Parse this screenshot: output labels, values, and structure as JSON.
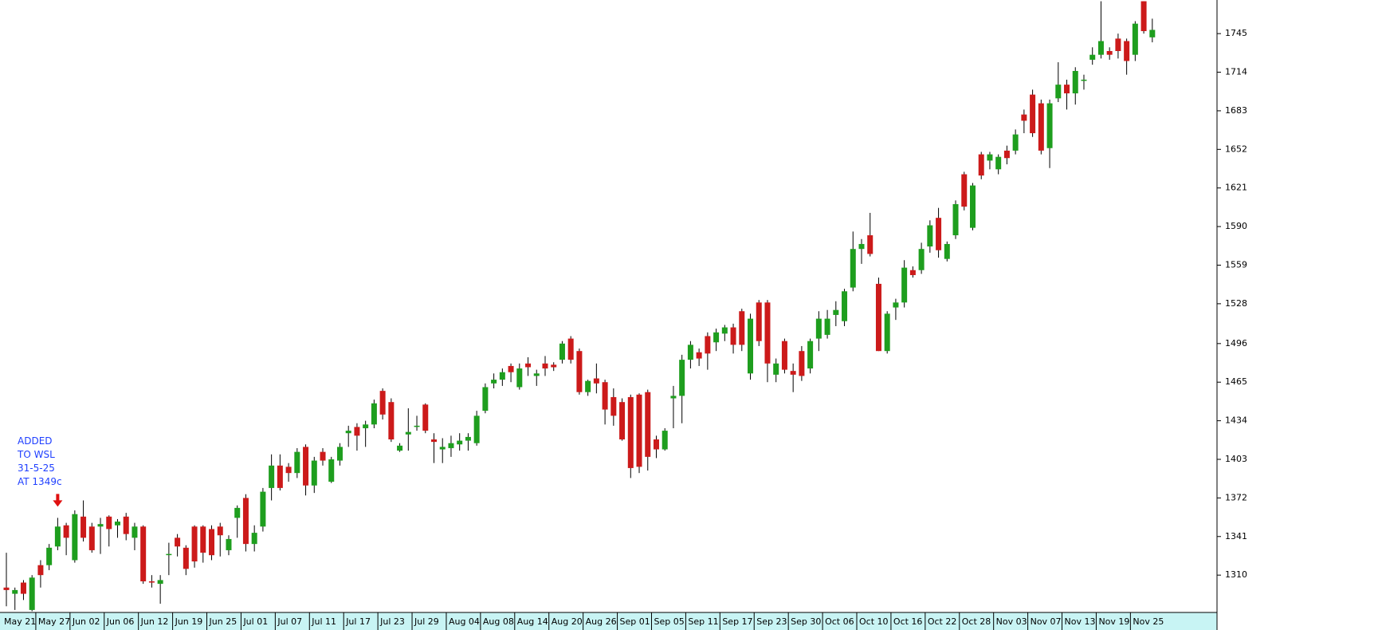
{
  "chart_data": {
    "type": "candlestick",
    "categories": [
      "May 21",
      null,
      null,
      null,
      "May 27",
      null,
      null,
      null,
      "Jun 02",
      null,
      null,
      null,
      "Jun 06",
      null,
      null,
      null,
      "Jun 12",
      null,
      null,
      null,
      "Jun 19",
      null,
      null,
      null,
      "Jun 25",
      null,
      null,
      null,
      "Jul 01",
      null,
      null,
      null,
      "Jul 07",
      null,
      null,
      null,
      "Jul 11",
      null,
      null,
      null,
      "Jul 17",
      null,
      null,
      null,
      "Jul 23",
      null,
      null,
      null,
      "Jul 29",
      null,
      null,
      null,
      "Aug 04",
      null,
      null,
      null,
      "Aug 08",
      null,
      null,
      null,
      "Aug 14",
      null,
      null,
      null,
      "Aug 20",
      null,
      null,
      null,
      "Aug 26",
      null,
      null,
      null,
      "Sep 01",
      null,
      null,
      null,
      "Sep 05",
      null,
      null,
      null,
      "Sep 11",
      null,
      null,
      null,
      "Sep 17",
      null,
      null,
      null,
      "Sep 23",
      null,
      null,
      null,
      "Sep 30",
      null,
      null,
      null,
      "Oct 06",
      null,
      null,
      null,
      "Oct 10",
      null,
      null,
      null,
      "Oct 16",
      null,
      null,
      null,
      "Oct 22",
      null,
      null,
      null,
      "Oct 28",
      null,
      null,
      null,
      "Nov 03",
      null,
      null,
      null,
      "Nov 07",
      null,
      null,
      null,
      "Nov 13",
      null,
      null,
      null,
      "Nov 19",
      null,
      null,
      null,
      "Nov 25",
      null,
      null
    ],
    "open": [
      1300,
      1295,
      1304,
      1282,
      1318,
      1318,
      1333,
      1350,
      1322,
      1357,
      1349,
      1349,
      1357,
      1350,
      1357,
      1340,
      1349,
      1305,
      1303,
      1327,
      1340,
      1332,
      1349,
      1349,
      1347,
      1349,
      1330,
      1356,
      1372,
      1335,
      1349,
      1380,
      1398,
      1397,
      1392,
      1413,
      1382,
      1409,
      1385,
      1402,
      1424,
      1429,
      1428,
      1431,
      1458,
      1449,
      1410,
      1423,
      1430,
      1447,
      1419,
      1411,
      1412,
      1415,
      1418,
      1416,
      1442,
      1464,
      1467,
      1478,
      1461,
      1480,
      1470,
      1480,
      1479,
      1483,
      1500,
      1490,
      1457,
      1468,
      1465,
      1453,
      1449,
      1453,
      1455,
      1457,
      1419,
      1411,
      1452,
      1454,
      1483,
      1489,
      1502,
      1497,
      1504,
      1509,
      1522,
      1472,
      1529,
      1529,
      1471,
      1498,
      1474,
      1490,
      1476,
      1500,
      1503,
      1519,
      1514,
      1541,
      1572,
      1583,
      1544,
      1490,
      1525,
      1529,
      1555,
      1555,
      1574,
      1597,
      1564,
      1583,
      1632,
      1589,
      1648,
      1643,
      1636,
      1651,
      1651,
      1680,
      1696,
      1689,
      1653,
      1693,
      1704,
      1697,
      1708,
      1724,
      1728,
      1731,
      1741,
      1739,
      1728,
      1771,
      1742
    ],
    "high": [
      1328,
      1300,
      1306,
      1310,
      1322,
      1335,
      1356,
      1352,
      1362,
      1370,
      1352,
      1356,
      1358,
      1355,
      1360,
      1352,
      1350,
      1310,
      1310,
      1336,
      1343,
      1334,
      1350,
      1350,
      1350,
      1352,
      1342,
      1366,
      1375,
      1350,
      1380,
      1407,
      1407,
      1400,
      1412,
      1415,
      1405,
      1412,
      1405,
      1416,
      1430,
      1432,
      1434,
      1451,
      1460,
      1452,
      1416,
      1444,
      1438,
      1448,
      1424,
      1420,
      1422,
      1424,
      1424,
      1442,
      1464,
      1472,
      1476,
      1480,
      1480,
      1485,
      1475,
      1486,
      1481,
      1498,
      1502,
      1492,
      1467,
      1480,
      1467,
      1460,
      1452,
      1455,
      1456,
      1459,
      1422,
      1428,
      1462,
      1487,
      1498,
      1492,
      1505,
      1508,
      1511,
      1512,
      1524,
      1520,
      1531,
      1531,
      1484,
      1500,
      1480,
      1494,
      1500,
      1522,
      1523,
      1530,
      1540,
      1586,
      1580,
      1601,
      1549,
      1522,
      1532,
      1563,
      1558,
      1577,
      1595,
      1605,
      1578,
      1611,
      1634,
      1625,
      1650,
      1650,
      1648,
      1655,
      1668,
      1684,
      1700,
      1692,
      1692,
      1722,
      1708,
      1718,
      1712,
      1734,
      1771,
      1734,
      1745,
      1741,
      1755,
      1771,
      1757
    ],
    "low": [
      1285,
      1282,
      1290,
      1281,
      1300,
      1314,
      1330,
      1326,
      1320,
      1337,
      1328,
      1327,
      1333,
      1340,
      1338,
      1330,
      1303,
      1300,
      1287,
      1310,
      1325,
      1310,
      1316,
      1320,
      1322,
      1325,
      1326,
      1340,
      1329,
      1329,
      1345,
      1370,
      1378,
      1385,
      1388,
      1374,
      1376,
      1398,
      1384,
      1398,
      1413,
      1410,
      1413,
      1428,
      1435,
      1417,
      1409,
      1410,
      1426,
      1424,
      1400,
      1400,
      1405,
      1410,
      1410,
      1414,
      1440,
      1460,
      1462,
      1465,
      1459,
      1470,
      1462,
      1470,
      1474,
      1480,
      1480,
      1455,
      1454,
      1456,
      1431,
      1430,
      1418,
      1388,
      1392,
      1394,
      1404,
      1410,
      1428,
      1432,
      1476,
      1478,
      1475,
      1490,
      1498,
      1488,
      1490,
      1467,
      1494,
      1465,
      1465,
      1472,
      1457,
      1466,
      1472,
      1490,
      1500,
      1510,
      1510,
      1538,
      1560,
      1566,
      1490,
      1488,
      1515,
      1525,
      1549,
      1552,
      1569,
      1565,
      1562,
      1580,
      1603,
      1587,
      1628,
      1636,
      1632,
      1640,
      1648,
      1665,
      1662,
      1648,
      1637,
      1690,
      1684,
      1688,
      1700,
      1720,
      1725,
      1724,
      1725,
      1712,
      1723,
      1745,
      1738
    ],
    "close": [
      1298,
      1298,
      1295,
      1308,
      1310,
      1332,
      1349,
      1340,
      1359,
      1340,
      1330,
      1351,
      1347,
      1353,
      1343,
      1349,
      1305,
      1304,
      1306,
      1327,
      1333,
      1315,
      1321,
      1328,
      1326,
      1342,
      1339,
      1364,
      1335,
      1344,
      1377,
      1398,
      1380,
      1392,
      1409,
      1382,
      1402,
      1402,
      1403,
      1413,
      1426,
      1422,
      1431,
      1448,
      1439,
      1419,
      1414,
      1425,
      1430,
      1426,
      1417,
      1413,
      1416,
      1418,
      1421,
      1438,
      1461,
      1467,
      1473,
      1473,
      1476,
      1477,
      1472,
      1476,
      1477,
      1496,
      1483,
      1457,
      1466,
      1464,
      1443,
      1438,
      1419,
      1396,
      1397,
      1405,
      1411,
      1426,
      1454,
      1483,
      1495,
      1484,
      1488,
      1505,
      1509,
      1495,
      1495,
      1516,
      1498,
      1480,
      1480,
      1475,
      1471,
      1470,
      1498,
      1516,
      1516,
      1523,
      1538,
      1572,
      1576,
      1568,
      1490,
      1520,
      1529,
      1557,
      1551,
      1572,
      1591,
      1571,
      1576,
      1608,
      1606,
      1623,
      1631,
      1648,
      1646,
      1645,
      1664,
      1675,
      1665,
      1651,
      1689,
      1704,
      1697,
      1715,
      1708,
      1728,
      1739,
      1728,
      1731,
      1723,
      1753,
      1747,
      1748
    ],
    "up_color": "#1e9e1e",
    "down_color": "#cc1a1a",
    "ylim": [
      1280,
      1772
    ],
    "yticks": [
      1310,
      1341,
      1372,
      1403,
      1434,
      1465,
      1496,
      1528,
      1559,
      1590,
      1621,
      1652,
      1683,
      1714,
      1745
    ],
    "annotation": [
      "ADDED",
      "TO WSL",
      "31-5-25",
      "AT 1349c"
    ],
    "annotation_color": "#1f3fff",
    "arrow_color": "#e01010"
  }
}
